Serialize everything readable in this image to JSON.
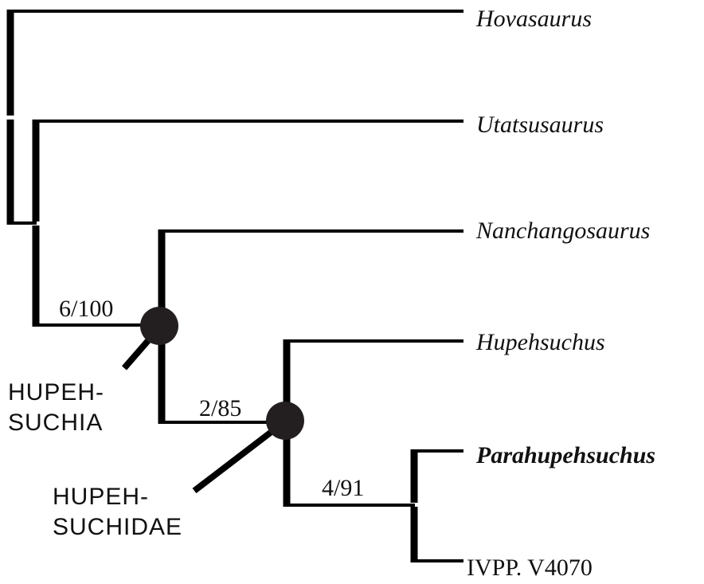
{
  "taxa": {
    "hovasaurus": "Hovasaurus",
    "utatsusaurus": "Utatsusaurus",
    "nanchangosaurus": "Nanchangosaurus",
    "hupehsuchus": "Hupehsuchus",
    "parahupehsuchus": "Parahupehsuchus",
    "ivpp": "IVPP. V4070"
  },
  "support_values": {
    "hupehsuchia_node": "6/100",
    "hupehsuchidae_node": "2/85",
    "parahupehsuchus_ivpp_node": "4/91"
  },
  "clades": {
    "hupehsuchia": [
      "HUPEH-",
      "SUCHIA"
    ],
    "hupehsuchidae": [
      "HUPEH-",
      "SUCHIDAE"
    ]
  },
  "colors": {
    "branch": "#000000",
    "node_marker": "#231f20",
    "text": "#111111",
    "background": "#ffffff"
  }
}
